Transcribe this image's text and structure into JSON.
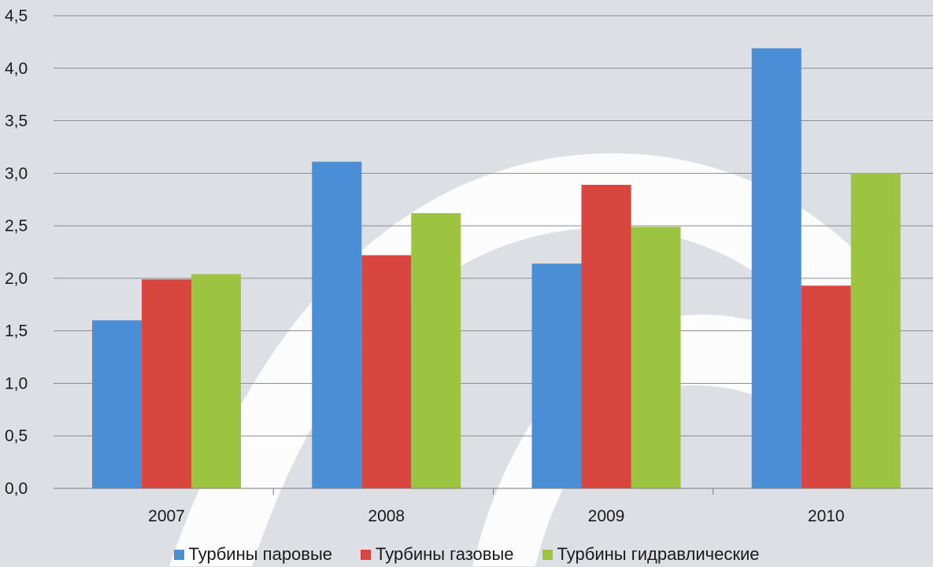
{
  "chart_data": {
    "type": "bar",
    "categories": [
      "2007",
      "2008",
      "2009",
      "2010"
    ],
    "series": [
      {
        "name": "Турбины паровые",
        "values": [
          1.6,
          3.11,
          2.14,
          4.19
        ],
        "color": "#4a8fd6"
      },
      {
        "name": "Турбины газовые",
        "values": [
          1.99,
          2.22,
          2.89,
          1.93
        ],
        "color": "#d9463f"
      },
      {
        "name": "Турбины гидравлические",
        "values": [
          2.04,
          2.62,
          2.49,
          3.0
        ],
        "color": "#9dc440"
      }
    ],
    "ylim": [
      0,
      4.5
    ],
    "yticks": [
      "0,0",
      "0,5",
      "1,0",
      "1,5",
      "2,0",
      "2,5",
      "3,0",
      "3,5",
      "4,0",
      "4,5"
    ],
    "grid": true,
    "legend_position": "bottom"
  }
}
